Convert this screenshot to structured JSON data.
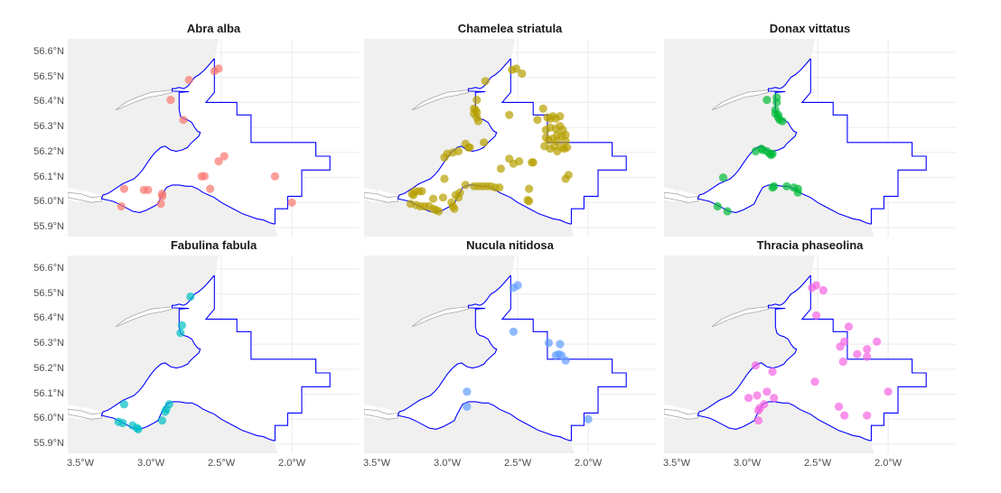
{
  "chart_data": {
    "type": "scatter",
    "layout": "facet map 2x3",
    "title": "",
    "xlabel": "",
    "ylabel": "",
    "xlim": [
      -3.59,
      -1.52
    ],
    "ylim": [
      55.864,
      56.654
    ],
    "x_ticks": [
      "3.5°W",
      "3.0°W",
      "2.5°W",
      "2.0°W"
    ],
    "x_tick_values": [
      -3.5,
      -3.0,
      -2.5,
      -2.0
    ],
    "y_ticks": [
      "56.6°N",
      "56.5°N",
      "56.4°N",
      "56.3°N",
      "56.2°N",
      "56.1°N",
      "56.0°N",
      "55.9°N"
    ],
    "y_tick_values": [
      56.6,
      56.5,
      56.4,
      56.3,
      56.2,
      56.1,
      56.0,
      55.9
    ],
    "grid": true,
    "legend": "none",
    "boundary_color": "#0000ff",
    "land_color": "#f0f0f0",
    "panels": [
      {
        "title": "Abra alba",
        "color": "#f8766d",
        "points": [
          [
            -2.55,
            56.525
          ],
          [
            -2.52,
            56.535
          ],
          [
            -2.73,
            56.49
          ],
          [
            -2.86,
            56.41
          ],
          [
            -2.77,
            56.33
          ],
          [
            -2.52,
            56.165
          ],
          [
            -2.48,
            56.185
          ],
          [
            -2.64,
            56.105
          ],
          [
            -2.62,
            56.105
          ],
          [
            -2.12,
            56.105
          ],
          [
            -2.58,
            56.055
          ],
          [
            -3.19,
            56.055
          ],
          [
            -3.05,
            56.05
          ],
          [
            -3.02,
            56.05
          ],
          [
            -2.92,
            56.035
          ],
          [
            -2.92,
            56.025
          ],
          [
            -2.93,
            55.995
          ],
          [
            -3.21,
            55.985
          ],
          [
            -2.0,
            56.0
          ]
        ]
      },
      {
        "title": "Chamelea striatula",
        "color": "#b79f00",
        "points": [
          [
            -2.54,
            56.53
          ],
          [
            -2.51,
            56.535
          ],
          [
            -2.47,
            56.515
          ],
          [
            -2.73,
            56.485
          ],
          [
            -2.79,
            56.41
          ],
          [
            -2.81,
            56.375
          ],
          [
            -2.8,
            56.37
          ],
          [
            -2.79,
            56.36
          ],
          [
            -2.81,
            56.355
          ],
          [
            -2.79,
            56.34
          ],
          [
            -2.78,
            56.325
          ],
          [
            -2.56,
            56.35
          ],
          [
            -2.32,
            56.375
          ],
          [
            -2.36,
            56.33
          ],
          [
            -2.29,
            56.34
          ],
          [
            -2.27,
            56.335
          ],
          [
            -2.25,
            56.345
          ],
          [
            -2.23,
            56.335
          ],
          [
            -2.2,
            56.345
          ],
          [
            -2.3,
            56.29
          ],
          [
            -2.27,
            56.3
          ],
          [
            -2.23,
            56.295
          ],
          [
            -2.2,
            56.305
          ],
          [
            -2.18,
            56.29
          ],
          [
            -2.16,
            56.27
          ],
          [
            -2.3,
            56.26
          ],
          [
            -2.28,
            56.25
          ],
          [
            -2.25,
            56.255
          ],
          [
            -2.22,
            56.27
          ],
          [
            -2.19,
            56.265
          ],
          [
            -2.16,
            56.245
          ],
          [
            -2.22,
            56.245
          ],
          [
            -2.31,
            56.225
          ],
          [
            -2.27,
            56.215
          ],
          [
            -2.24,
            56.225
          ],
          [
            -2.22,
            56.205
          ],
          [
            -2.19,
            56.22
          ],
          [
            -2.17,
            56.215
          ],
          [
            -2.15,
            56.22
          ],
          [
            -2.87,
            56.235
          ],
          [
            -2.74,
            56.24
          ],
          [
            -2.84,
            56.22
          ],
          [
            -2.85,
            56.22
          ],
          [
            -2.92,
            56.205
          ],
          [
            -2.96,
            56.2
          ],
          [
            -3.02,
            56.18
          ],
          [
            -3.0,
            56.195
          ],
          [
            -2.56,
            56.175
          ],
          [
            -2.53,
            56.155
          ],
          [
            -2.62,
            56.135
          ],
          [
            -2.39,
            56.16
          ],
          [
            -2.4,
            56.16
          ],
          [
            -2.49,
            56.165
          ],
          [
            -2.14,
            56.11
          ],
          [
            -2.16,
            56.095
          ],
          [
            -3.02,
            56.095
          ],
          [
            -2.87,
            56.07
          ],
          [
            -2.81,
            56.065
          ],
          [
            -2.78,
            56.065
          ],
          [
            -2.75,
            56.065
          ],
          [
            -2.72,
            56.065
          ],
          [
            -2.69,
            56.065
          ],
          [
            -2.66,
            56.06
          ],
          [
            -2.63,
            56.06
          ],
          [
            -2.42,
            56.055
          ],
          [
            -3.23,
            56.045
          ],
          [
            -3.25,
            56.035
          ],
          [
            -3.24,
            56.03
          ],
          [
            -3.18,
            56.045
          ],
          [
            -3.2,
            56.045
          ],
          [
            -2.91,
            56.04
          ],
          [
            -2.94,
            56.03
          ],
          [
            -2.92,
            56.02
          ],
          [
            -2.97,
            56.0
          ],
          [
            -3.03,
            56.02
          ],
          [
            -3.1,
            56.015
          ],
          [
            -3.26,
            55.995
          ],
          [
            -3.22,
            55.99
          ],
          [
            -3.19,
            55.985
          ],
          [
            -3.16,
            55.985
          ],
          [
            -3.13,
            55.985
          ],
          [
            -3.1,
            55.975
          ],
          [
            -3.08,
            55.97
          ],
          [
            -3.06,
            55.965
          ],
          [
            -2.96,
            55.985
          ],
          [
            -2.95,
            55.975
          ],
          [
            -2.43,
            56.01
          ],
          [
            -2.42,
            56.005
          ]
        ]
      },
      {
        "title": "Donax vittatus",
        "color": "#00ba38",
        "points": [
          [
            -2.86,
            56.41
          ],
          [
            -2.79,
            56.42
          ],
          [
            -2.79,
            56.4
          ],
          [
            -2.8,
            56.37
          ],
          [
            -2.8,
            56.355
          ],
          [
            -2.78,
            56.35
          ],
          [
            -2.78,
            56.34
          ],
          [
            -2.77,
            56.33
          ],
          [
            -2.75,
            56.325
          ],
          [
            -2.94,
            56.205
          ],
          [
            -2.9,
            56.215
          ],
          [
            -2.89,
            56.21
          ],
          [
            -2.86,
            56.205
          ],
          [
            -2.84,
            56.195
          ],
          [
            -2.83,
            56.19
          ],
          [
            -2.82,
            56.195
          ],
          [
            -3.17,
            56.1
          ],
          [
            -2.82,
            56.06
          ],
          [
            -2.81,
            56.065
          ],
          [
            -2.72,
            56.065
          ],
          [
            -2.67,
            56.06
          ],
          [
            -2.64,
            56.055
          ],
          [
            -2.64,
            56.04
          ],
          [
            -3.21,
            55.985
          ],
          [
            -3.14,
            55.965
          ]
        ]
      },
      {
        "title": "Fabulina fabula",
        "color": "#00bfc4",
        "points": [
          [
            -2.72,
            56.49
          ],
          [
            -2.78,
            56.375
          ],
          [
            -2.79,
            56.345
          ],
          [
            -3.19,
            56.06
          ],
          [
            -2.87,
            56.06
          ],
          [
            -2.89,
            56.04
          ],
          [
            -2.9,
            56.03
          ],
          [
            -2.92,
            55.995
          ],
          [
            -3.23,
            55.99
          ],
          [
            -3.2,
            55.985
          ],
          [
            -3.13,
            55.975
          ],
          [
            -3.1,
            55.965
          ],
          [
            -3.09,
            55.96
          ]
        ]
      },
      {
        "title": "Nucula nitidosa",
        "color": "#619cff",
        "points": [
          [
            -2.53,
            56.525
          ],
          [
            -2.5,
            56.535
          ],
          [
            -2.53,
            56.35
          ],
          [
            -2.28,
            56.305
          ],
          [
            -2.2,
            56.3
          ],
          [
            -2.23,
            56.255
          ],
          [
            -2.21,
            56.26
          ],
          [
            -2.19,
            56.255
          ],
          [
            -2.16,
            56.235
          ],
          [
            -2.86,
            56.11
          ],
          [
            -2.86,
            56.05
          ],
          [
            -2.0,
            56.0
          ]
        ]
      },
      {
        "title": "Thracia phaseolina",
        "color": "#f564e3",
        "points": [
          [
            -2.54,
            56.525
          ],
          [
            -2.51,
            56.535
          ],
          [
            -2.46,
            56.515
          ],
          [
            -2.51,
            56.415
          ],
          [
            -2.28,
            56.37
          ],
          [
            -2.31,
            56.31
          ],
          [
            -2.34,
            56.29
          ],
          [
            -2.15,
            56.28
          ],
          [
            -2.08,
            56.31
          ],
          [
            -2.22,
            56.26
          ],
          [
            -2.15,
            56.25
          ],
          [
            -2.32,
            56.23
          ],
          [
            -2.94,
            56.215
          ],
          [
            -2.82,
            56.19
          ],
          [
            -2.52,
            56.15
          ],
          [
            -2.86,
            56.11
          ],
          [
            -2.93,
            56.095
          ],
          [
            -2.99,
            56.085
          ],
          [
            -2.81,
            56.085
          ],
          [
            -2.88,
            56.06
          ],
          [
            -2.91,
            56.045
          ],
          [
            -2.92,
            56.035
          ],
          [
            -2.92,
            55.995
          ],
          [
            -2.35,
            56.05
          ],
          [
            -2.31,
            56.015
          ],
          [
            -2.15,
            56.015
          ],
          [
            -2.0,
            56.11
          ]
        ]
      }
    ]
  }
}
